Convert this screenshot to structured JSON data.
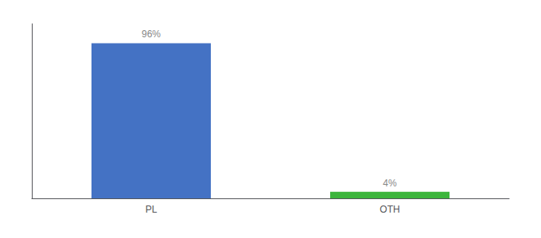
{
  "chart_data": {
    "type": "bar",
    "categories": [
      "PL",
      "OTH"
    ],
    "values": [
      96,
      4
    ],
    "value_labels": [
      "96%",
      "4%"
    ],
    "colors": [
      "#4472c4",
      "#3cb53c"
    ],
    "ylim": [
      0,
      108
    ],
    "data_labels": true,
    "tick_labels": "x",
    "grid": false
  }
}
